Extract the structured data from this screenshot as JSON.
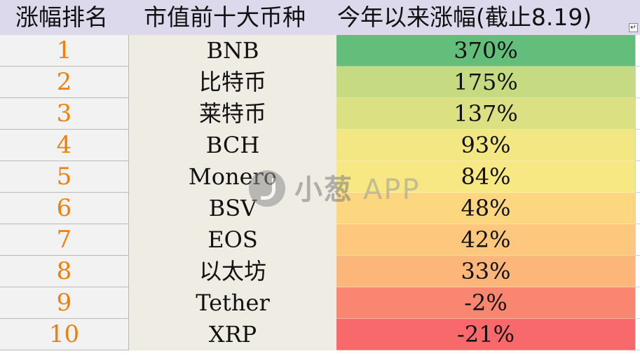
{
  "header": {
    "rank_label": "涨幅排名",
    "name_label": "市值前十大币种",
    "gain_label": "今年以来涨幅(截止8.19)",
    "filter_icon": "filter-dropdown-icon"
  },
  "rows": [
    {
      "rank": "1",
      "name": "BNB",
      "gain": "370%",
      "color": "#63be7b"
    },
    {
      "rank": "2",
      "name": "比特币",
      "gain": "175%",
      "color": "#c6db81"
    },
    {
      "rank": "3",
      "name": "莱特币",
      "gain": "137%",
      "color": "#dbe182"
    },
    {
      "rank": "4",
      "name": "BCH",
      "gain": "93%",
      "color": "#f2e783"
    },
    {
      "rank": "5",
      "name": "Monero",
      "gain": "84%",
      "color": "#f7e883"
    },
    {
      "rank": "6",
      "name": "BSV",
      "gain": "48%",
      "color": "#fdd680"
    },
    {
      "rank": "7",
      "name": "EOS",
      "gain": "42%",
      "color": "#fdc77d"
    },
    {
      "rank": "8",
      "name": "以太坊",
      "gain": "33%",
      "color": "#fcb67a"
    },
    {
      "rank": "9",
      "name": "Tether",
      "gain": "-2%",
      "color": "#f98670"
    },
    {
      "rank": "10",
      "name": "XRP",
      "gain": "-21%",
      "color": "#f8696b"
    }
  ],
  "watermark": {
    "brand": "小葱",
    "suffix": "APP",
    "logo_icon": "xiaocong-logo-icon"
  }
}
